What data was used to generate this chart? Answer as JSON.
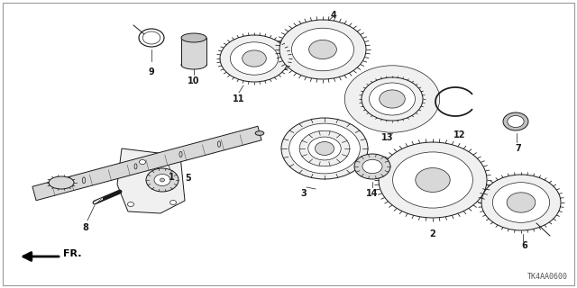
{
  "bg_color": "#ffffff",
  "ec": "#1a1a1a",
  "lw": 0.7,
  "figsize": [
    6.4,
    3.2
  ],
  "dpi": 100,
  "part_code": "TK4AA0600"
}
